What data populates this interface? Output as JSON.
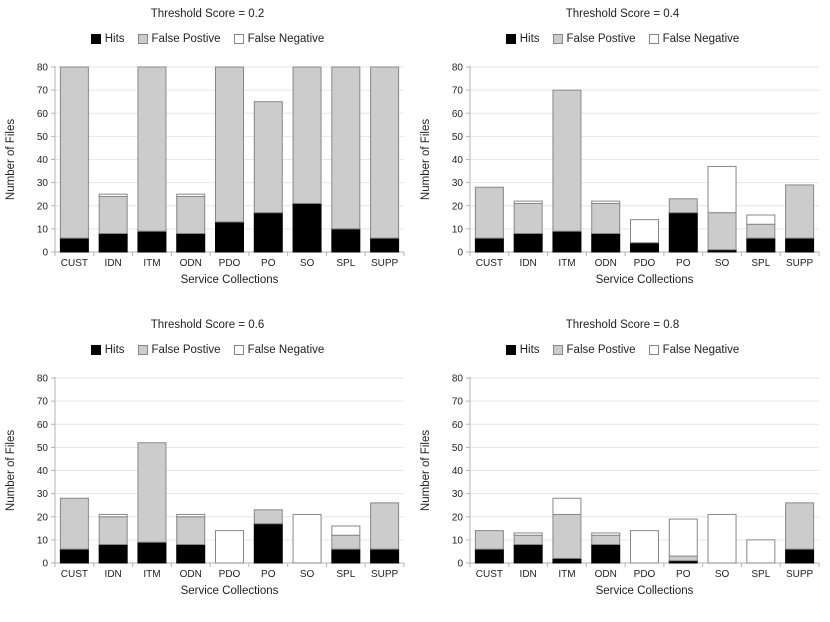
{
  "page": {
    "background": "#ffffff"
  },
  "legend": {
    "position": "top",
    "items": [
      {
        "id": "hits",
        "label": "Hits",
        "fill": "#000000",
        "border": "#000000"
      },
      {
        "id": "false-positive",
        "label": "False Postive",
        "fill": "#cccccc",
        "border": "#878787"
      },
      {
        "id": "false-negative",
        "label": "False Negative",
        "fill": "#ffffff",
        "border": "#878787"
      }
    ]
  },
  "style": {
    "grid_color": "#e6e6e6",
    "axis_color": "#b3b3b3",
    "segment_borders": [
      "#000000",
      "#878787",
      "#878787"
    ],
    "segment_fills": [
      "#000000",
      "#cccccc",
      "#ffffff"
    ]
  },
  "chart_data": [
    {
      "type": "bar",
      "stacked": true,
      "title": "Threshold Score = 0.2",
      "xlabel": "Service Collections",
      "ylabel": "Number of Files",
      "ylim": [
        0,
        80
      ],
      "ytick_step": 10,
      "grid": true,
      "legend_position": "top",
      "categories": [
        "CUST",
        "IDN",
        "ITM",
        "ODN",
        "PDO",
        "PO",
        "SO",
        "SPL",
        "SUPP"
      ],
      "series": [
        {
          "name": "Hits",
          "values": [
            6,
            8,
            9,
            8,
            13,
            17,
            21,
            10,
            6
          ]
        },
        {
          "name": "False Postive",
          "values": [
            74,
            16,
            71,
            16,
            67,
            48,
            59,
            70,
            74
          ]
        },
        {
          "name": "False Negative",
          "values": [
            0,
            1,
            0,
            1,
            0,
            0,
            0,
            0,
            0
          ]
        }
      ]
    },
    {
      "type": "bar",
      "stacked": true,
      "title": "Threshold Score = 0.4",
      "xlabel": "Service Collections",
      "ylabel": "Number of Files",
      "ylim": [
        0,
        80
      ],
      "ytick_step": 10,
      "grid": true,
      "legend_position": "top",
      "categories": [
        "CUST",
        "IDN",
        "ITM",
        "ODN",
        "PDO",
        "PO",
        "SO",
        "SPL",
        "SUPP"
      ],
      "series": [
        {
          "name": "Hits",
          "values": [
            6,
            8,
            9,
            8,
            4,
            17,
            1,
            6,
            6
          ]
        },
        {
          "name": "False Postive",
          "values": [
            22,
            13,
            61,
            13,
            0,
            6,
            16,
            6,
            23
          ]
        },
        {
          "name": "False Negative",
          "values": [
            0,
            1,
            0,
            1,
            10,
            0,
            20,
            4,
            0
          ]
        }
      ]
    },
    {
      "type": "bar",
      "stacked": true,
      "title": "Threshold Score = 0.6",
      "xlabel": "Service Collections",
      "ylabel": "Number of Files",
      "ylim": [
        0,
        80
      ],
      "ytick_step": 10,
      "grid": true,
      "legend_position": "top",
      "categories": [
        "CUST",
        "IDN",
        "ITM",
        "ODN",
        "PDO",
        "PO",
        "SO",
        "SPL",
        "SUPP"
      ],
      "series": [
        {
          "name": "Hits",
          "values": [
            6,
            8,
            9,
            8,
            0,
            17,
            0,
            6,
            6
          ]
        },
        {
          "name": "False Postive",
          "values": [
            22,
            12,
            43,
            12,
            0,
            6,
            0,
            6,
            20
          ]
        },
        {
          "name": "False Negative",
          "values": [
            0,
            1,
            0,
            1,
            14,
            0,
            21,
            4,
            0
          ]
        }
      ]
    },
    {
      "type": "bar",
      "stacked": true,
      "title": "Threshold Score = 0.8",
      "xlabel": "Service Collections",
      "ylabel": "Number of Files",
      "ylim": [
        0,
        80
      ],
      "ytick_step": 10,
      "grid": true,
      "legend_position": "top",
      "categories": [
        "CUST",
        "IDN",
        "ITM",
        "ODN",
        "PDO",
        "PO",
        "SO",
        "SPL",
        "SUPP"
      ],
      "series": [
        {
          "name": "Hits",
          "values": [
            6,
            8,
            2,
            8,
            0,
            1,
            0,
            0,
            6
          ]
        },
        {
          "name": "False Postive",
          "values": [
            8,
            4,
            19,
            4,
            0,
            2,
            0,
            0,
            20
          ]
        },
        {
          "name": "False Negative",
          "values": [
            0,
            1,
            7,
            1,
            14,
            16,
            21,
            10,
            0
          ]
        }
      ]
    }
  ]
}
